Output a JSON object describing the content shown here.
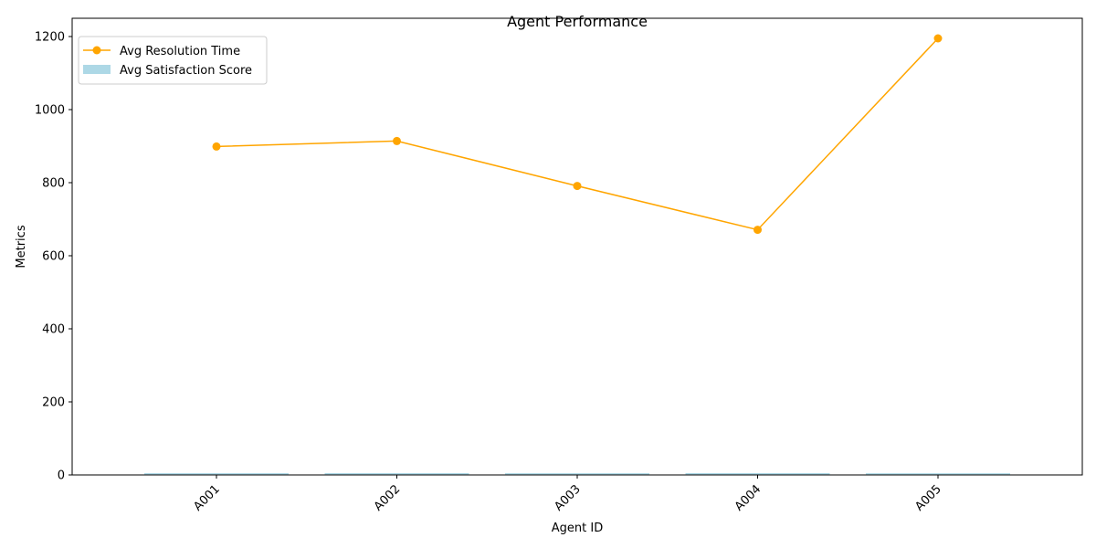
{
  "chart_data": {
    "type": "bar",
    "title": "Agent Performance",
    "xlabel": "Agent ID",
    "ylabel": "Metrics",
    "categories": [
      "A001",
      "A002",
      "A003",
      "A004",
      "A005"
    ],
    "ylim": [
      0,
      1250
    ],
    "yticks": [
      0,
      200,
      400,
      600,
      800,
      1000,
      1200
    ],
    "grid": false,
    "legend_position": "top-left",
    "series": [
      {
        "name": "Avg Resolution Time",
        "kind": "line",
        "marker": "circle",
        "color": "#ffa500",
        "values": [
          899,
          914,
          791,
          671,
          1195
        ]
      },
      {
        "name": "Avg Satisfaction Score",
        "kind": "bar",
        "color": "#add8e6",
        "values": [
          3.6,
          3.7,
          3.5,
          3.8,
          3.4
        ]
      }
    ]
  }
}
